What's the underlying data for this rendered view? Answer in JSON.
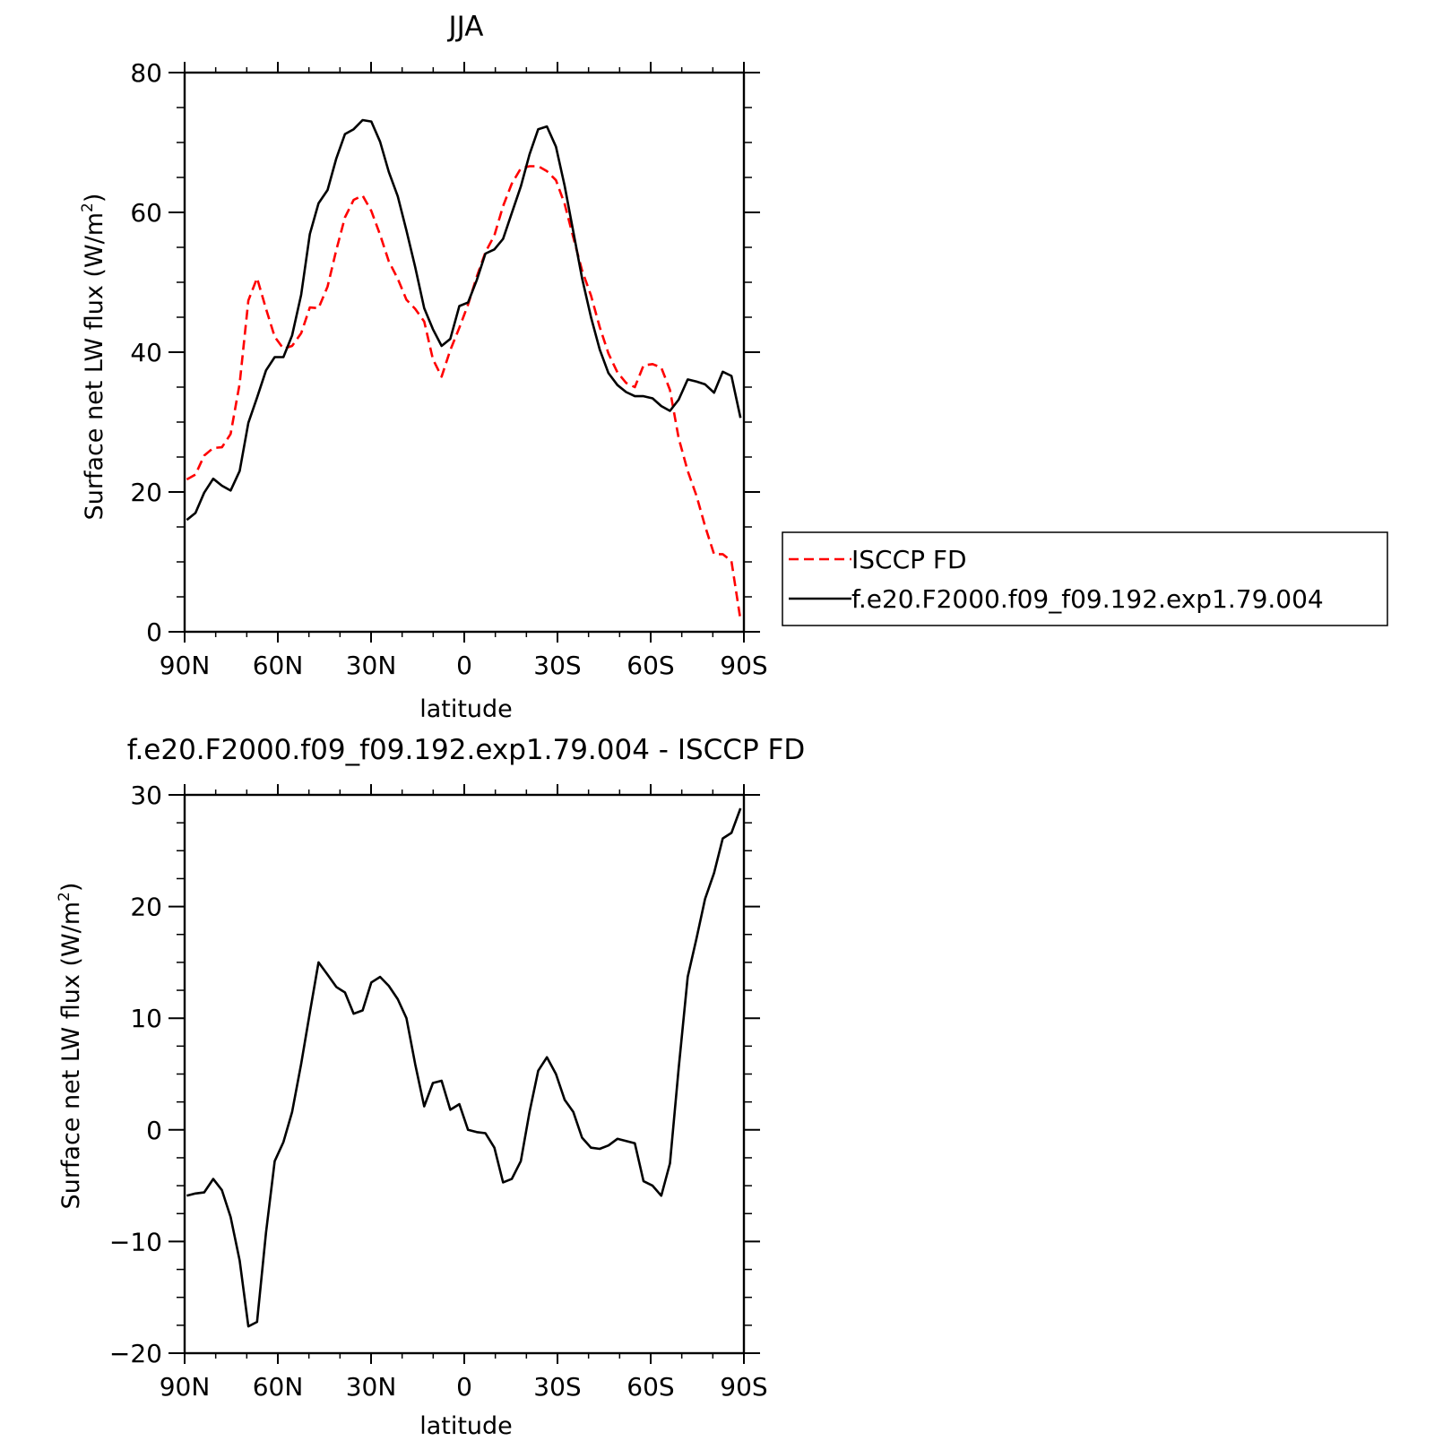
{
  "chart_data": [
    {
      "type": "line",
      "title": "JJA",
      "xlabel": "latitude",
      "ylabel": "Surface net LW flux (W/m",
      "ylabel_sup": "2",
      "ylabel_close": ")",
      "xlim": [
        90,
        -90
      ],
      "ylim": [
        0,
        80
      ],
      "xticks": [
        90,
        60,
        30,
        0,
        -30,
        -60,
        -90
      ],
      "xticklabels": [
        "90N",
        "60N",
        "30N",
        "0",
        "30S",
        "60S",
        "90S"
      ],
      "yticks": [
        0,
        20,
        40,
        60,
        80
      ],
      "yticklabels": [
        "0",
        "20",
        "40",
        "60",
        "80"
      ],
      "grid": false,
      "legend": "right",
      "series": [
        {
          "name": "ISCCP FD",
          "style": "dashed",
          "color": "#ff0000",
          "x": [
            89.3,
            86.5,
            83.7,
            80.8,
            78,
            75.2,
            72.3,
            69.5,
            66.7,
            63.8,
            61,
            58.2,
            55.4,
            52.5,
            49.7,
            46.9,
            44,
            41.2,
            38.4,
            35.6,
            32.7,
            29.9,
            27.1,
            24.3,
            21.4,
            18.6,
            15.8,
            12.9,
            10.1,
            7.3,
            4.5,
            1.6,
            -1.2,
            -4,
            -6.8,
            -9.7,
            -12.5,
            -15.3,
            -18.2,
            -21,
            -23.8,
            -26.6,
            -29.5,
            -32.3,
            -35.1,
            -37.9,
            -40.8,
            -43.6,
            -46.4,
            -49.3,
            -52.1,
            -54.9,
            -57.7,
            -60.6,
            -63.4,
            -66.2,
            -69,
            -71.9,
            -74.7,
            -77.5,
            -80.4,
            -83.2,
            -86,
            -88.9
          ],
          "y": [
            21.8,
            22.5,
            25.2,
            26.3,
            26.4,
            28.3,
            35.5,
            47.4,
            50.6,
            46.2,
            42.2,
            40.5,
            40.9,
            42.7,
            46.4,
            46.3,
            49.4,
            54.6,
            59.3,
            61.8,
            62.4,
            60.2,
            56.8,
            53,
            50.5,
            47.5,
            46.2,
            44.4,
            39,
            36.5,
            40.3,
            43.5,
            46.8,
            50.8,
            54.3,
            56.7,
            60.9,
            64.1,
            66.3,
            66.6,
            66.6,
            65.9,
            64.6,
            61.2,
            56.4,
            51.7,
            48.1,
            43.6,
            39.8,
            37.1,
            35.6,
            35,
            38.1,
            38.3,
            37.8,
            34.6,
            27.7,
            23,
            19.5,
            15.1,
            11.1,
            11.1,
            10.1,
            1.7
          ]
        },
        {
          "name": "f.e20.F2000.f09_f09.192.exp1.79.004",
          "style": "solid",
          "color": "#000000",
          "x": [
            89.3,
            86.5,
            83.7,
            80.8,
            78,
            75.2,
            72.3,
            69.5,
            66.7,
            63.8,
            61,
            58.2,
            55.4,
            52.5,
            49.7,
            46.9,
            44,
            41.2,
            38.4,
            35.6,
            32.7,
            29.9,
            27.1,
            24.3,
            21.4,
            18.6,
            15.8,
            12.9,
            10.1,
            7.3,
            4.5,
            1.6,
            -1.2,
            -4,
            -6.8,
            -9.7,
            -12.5,
            -15.3,
            -18.2,
            -21,
            -23.8,
            -26.6,
            -29.5,
            -32.3,
            -35.1,
            -37.9,
            -40.8,
            -43.6,
            -46.4,
            -49.3,
            -52.1,
            -54.9,
            -57.7,
            -60.6,
            -63.4,
            -66.2,
            -69,
            -71.9,
            -74.7,
            -77.5,
            -80.4,
            -83.2,
            -86,
            -88.9
          ],
          "y": [
            16,
            17,
            19.9,
            21.9,
            20.9,
            20.2,
            23,
            29.9,
            33.5,
            37.4,
            39.3,
            39.3,
            42.4,
            48.2,
            56.9,
            61.3,
            63.2,
            67.7,
            71.2,
            71.9,
            73.2,
            73,
            70.1,
            65.8,
            62.3,
            57.4,
            52.2,
            46.3,
            43.3,
            40.9,
            41.9,
            46.6,
            47.1,
            50.3,
            54.1,
            54.7,
            56.2,
            59.9,
            63.7,
            68.3,
            71.9,
            72.3,
            69.4,
            63.8,
            57.2,
            50.6,
            45,
            40.4,
            37,
            35.3,
            34.3,
            33.7,
            33.7,
            33.4,
            32.3,
            31.6,
            33.2,
            36.1,
            35.8,
            35.4,
            34.2,
            37.2,
            36.6,
            30.6
          ]
        }
      ]
    },
    {
      "type": "line",
      "title": "f.e20.F2000.f09_f09.192.exp1.79.004 - ISCCP FD",
      "xlabel": "latitude",
      "ylabel": "Surface net LW flux (W/m",
      "ylabel_sup": "2",
      "ylabel_close": ")",
      "xlim": [
        90,
        -90
      ],
      "ylim": [
        -20,
        30
      ],
      "xticks": [
        90,
        60,
        30,
        0,
        -30,
        -60,
        -90
      ],
      "xticklabels": [
        "90N",
        "60N",
        "30N",
        "0",
        "30S",
        "60S",
        "90S"
      ],
      "yticks": [
        -20,
        -10,
        0,
        10,
        20,
        30
      ],
      "yticklabels": [
        "−20",
        "−10",
        "0",
        "10",
        "20",
        "30"
      ],
      "grid": false,
      "series": [
        {
          "style": "solid",
          "color": "#000000",
          "x": [
            89.3,
            86.5,
            83.7,
            80.8,
            78,
            75.2,
            72.3,
            69.5,
            66.7,
            63.8,
            61,
            58.2,
            55.4,
            52.5,
            49.7,
            46.9,
            44,
            41.2,
            38.4,
            35.6,
            32.7,
            29.9,
            27.1,
            24.3,
            21.4,
            18.6,
            15.8,
            12.9,
            10.1,
            7.3,
            4.5,
            1.6,
            -1.2,
            -4,
            -6.8,
            -9.7,
            -12.5,
            -15.3,
            -18.2,
            -21,
            -23.8,
            -26.6,
            -29.5,
            -32.3,
            -35.1,
            -37.9,
            -40.8,
            -43.6,
            -46.4,
            -49.3,
            -52.1,
            -54.9,
            -57.7,
            -60.6,
            -63.4,
            -66.2,
            -69,
            -71.9,
            -74.7,
            -77.5,
            -80.4,
            -83.2,
            -86,
            -88.9
          ],
          "y": [
            -5.9,
            -5.7,
            -5.6,
            -4.4,
            -5.4,
            -7.8,
            -11.7,
            -17.6,
            -17.2,
            -9.2,
            -2.8,
            -1.1,
            1.6,
            5.9,
            10.5,
            15,
            13.9,
            12.8,
            12.3,
            10.4,
            10.7,
            13.2,
            13.7,
            12.9,
            11.7,
            10,
            5.9,
            2.1,
            4.2,
            4.4,
            1.8,
            2.3,
            0,
            -0.2,
            -0.3,
            -1.6,
            -4.7,
            -4.4,
            -2.8,
            1.6,
            5.3,
            6.5,
            5,
            2.7,
            1.6,
            -0.7,
            -1.6,
            -1.7,
            -1.4,
            -0.8,
            -1,
            -1.2,
            -4.6,
            -5,
            -5.9,
            -3,
            5.5,
            13.7,
            17.1,
            20.7,
            23,
            26.1,
            26.6,
            28.8
          ]
        }
      ]
    }
  ]
}
